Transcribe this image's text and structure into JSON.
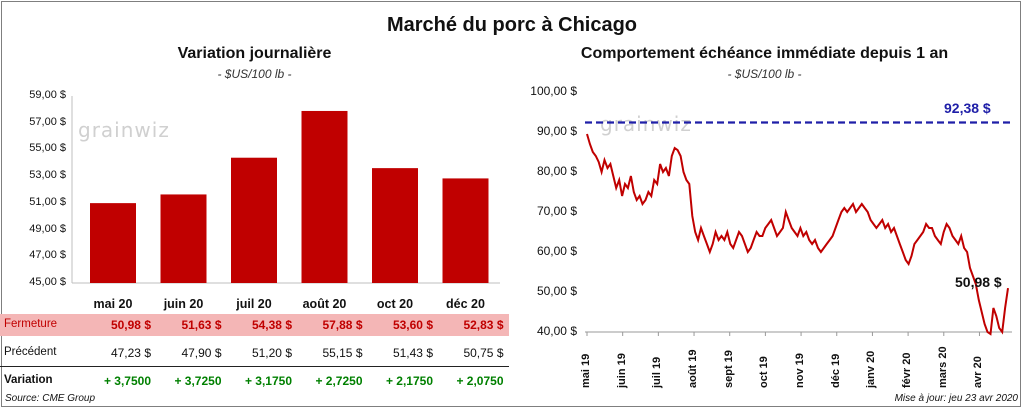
{
  "title": "Marché du porc à Chicago",
  "source": "Source: CME Group",
  "update": "Mise à jour: jeu 23 avr 2020",
  "logo": "grainwiz",
  "colors": {
    "bar": "#c00000",
    "line": "#c00000",
    "ref": "#1f1fa8",
    "fermeture_bg": "#f4b6b6",
    "positive": "#008000"
  },
  "chart_data": [
    {
      "type": "bar",
      "title": "Variation journalière",
      "unit": "- $US/100 lb -",
      "categories": [
        "mai 20",
        "juin 20",
        "juil 20",
        "août 20",
        "oct 20",
        "déc 20"
      ],
      "values": [
        50.98,
        51.63,
        54.38,
        57.88,
        53.6,
        52.83
      ],
      "ylim": [
        45,
        59
      ],
      "yticks": [
        "45,00 $",
        "47,00 $",
        "49,00 $",
        "51,00 $",
        "53,00 $",
        "55,00 $",
        "57,00 $",
        "59,00 $"
      ]
    },
    {
      "type": "line",
      "title": "Comportement échéance immédiate depuis 1 an",
      "unit": "- $US/100 lb -",
      "ylim": [
        40,
        100
      ],
      "yticks": [
        "40,00 $",
        "50,00 $",
        "60,00 $",
        "70,00 $",
        "80,00 $",
        "90,00 $",
        "100,00 $"
      ],
      "x_labels": [
        "mai 19",
        "juin 19",
        "juil 19",
        "août 19",
        "sept 19",
        "oct 19",
        "nov 19",
        "déc 19",
        "janv 20",
        "févr 20",
        "mars 20",
        "avr 20"
      ],
      "reference": {
        "value": 92.38,
        "label": "92,38 $"
      },
      "last": {
        "value": 50.98,
        "label": "50,98 $"
      },
      "series": [
        {
          "name": "Échéance immédiate",
          "values": [
            89.5,
            87,
            85,
            84,
            82.5,
            80,
            83,
            81,
            82,
            79,
            76,
            78,
            74,
            77,
            76,
            79,
            75,
            73,
            74,
            72,
            73,
            75,
            74,
            78,
            77,
            82,
            80,
            81,
            79,
            84,
            86,
            85.5,
            84,
            80,
            78,
            77,
            69,
            65,
            63,
            66,
            64,
            62,
            60,
            62,
            65,
            63,
            64,
            63,
            65,
            62,
            61,
            63,
            65,
            64,
            62,
            60,
            61,
            63,
            65,
            64,
            64,
            66,
            67,
            68,
            66,
            64,
            65,
            66,
            70,
            68,
            66,
            65,
            64,
            66,
            64,
            65,
            63,
            62,
            63,
            61,
            60,
            61,
            62,
            63,
            64,
            66,
            68,
            70,
            71,
            70,
            71,
            72,
            70,
            71,
            72,
            71,
            70,
            68,
            67,
            66,
            67,
            68,
            66,
            67,
            65,
            66,
            64,
            62,
            60,
            58,
            57,
            59,
            62,
            63,
            64,
            65,
            67,
            66,
            66,
            64,
            63,
            62,
            65,
            67,
            66,
            64,
            63,
            62,
            64,
            61,
            60,
            56,
            54,
            52,
            48,
            45,
            42,
            40,
            39,
            46,
            44,
            41,
            40,
            46,
            50.98
          ]
        }
      ]
    }
  ],
  "table": {
    "rows": [
      {
        "label": "Fermeture",
        "values": [
          "50,98",
          "51,63",
          "54,38",
          "57,88",
          "53,60",
          "52,83"
        ]
      },
      {
        "label": "Précédent",
        "values": [
          "47,23",
          "47,90",
          "51,20",
          "55,15",
          "51,43",
          "50,75"
        ]
      },
      {
        "label": "Variation",
        "values": [
          "+ 3,7500",
          "+ 3,7250",
          "+ 3,1750",
          "+ 2,7250",
          "+ 2,1750",
          "+ 2,0750"
        ]
      }
    ],
    "currency": "$"
  }
}
